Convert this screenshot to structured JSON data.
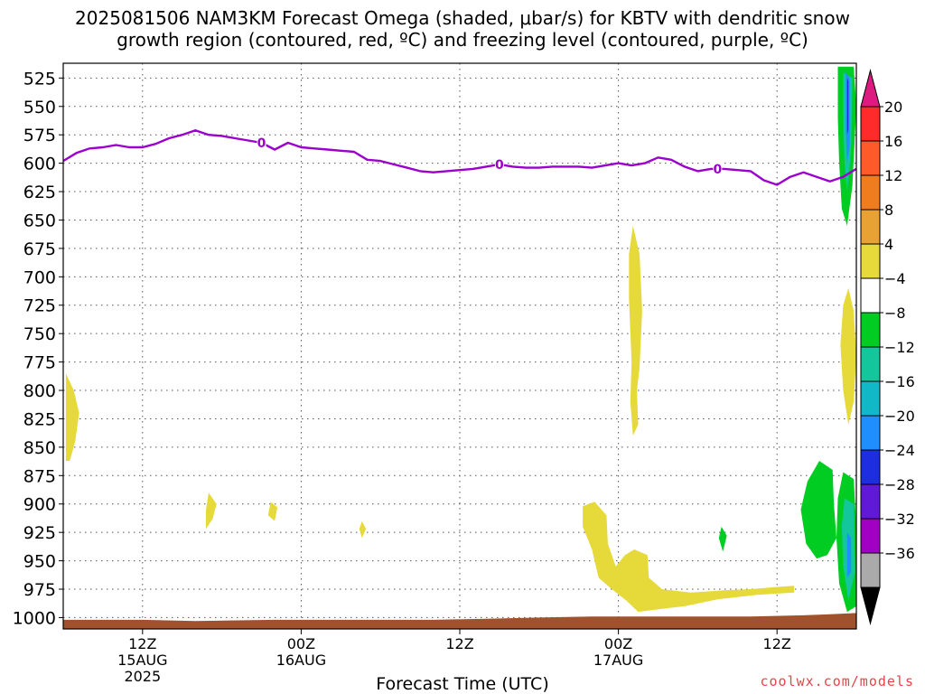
{
  "title": {
    "line1": "2025081506 NAM3KM Forecast Omega (shaded, μbar/s) for KBTV with dendritic snow",
    "line2": "growth region (contoured, red, ºC) and freezing level (contoured, purple, ºC)"
  },
  "credit": "coolwx.com/models",
  "chart_data": {
    "type": "heatmap",
    "title": "2025081506 NAM3KM Forecast Omega (shaded, μbar/s) for KBTV with dendritic snow growth region (contoured, red, ºC) and freezing level (contoured, purple, ºC)",
    "xlabel": "Forecast Time (UTC)",
    "ylabel": "",
    "y_axis": {
      "scale": "pressure (inverted)",
      "ylim": [
        1010,
        512
      ],
      "ticks": [
        525,
        550,
        575,
        600,
        625,
        650,
        675,
        700,
        725,
        750,
        775,
        800,
        825,
        850,
        875,
        900,
        925,
        950,
        975,
        1000
      ]
    },
    "x_axis": {
      "unit": "forecast hour from 2025-08-15 06Z",
      "xlim": [
        0,
        60
      ],
      "ticks": [
        {
          "hour": 6,
          "label": "12Z",
          "sub1": "15AUG",
          "sub2": "2025"
        },
        {
          "hour": 18,
          "label": "00Z",
          "sub1": "16AUG",
          "sub2": ""
        },
        {
          "hour": 30,
          "label": "12Z",
          "sub1": "",
          "sub2": ""
        },
        {
          "hour": 42,
          "label": "00Z",
          "sub1": "17AUG",
          "sub2": ""
        },
        {
          "hour": 54,
          "label": "12Z",
          "sub1": "",
          "sub2": ""
        }
      ]
    },
    "grid": true,
    "freezing_level": {
      "color": "#9b00cc",
      "label": "0",
      "label_hours": [
        15,
        33,
        49.5
      ],
      "points": [
        [
          0,
          598
        ],
        [
          1,
          591
        ],
        [
          2,
          587
        ],
        [
          3,
          586
        ],
        [
          4,
          584
        ],
        [
          5,
          586
        ],
        [
          6,
          586
        ],
        [
          7,
          583
        ],
        [
          8,
          578
        ],
        [
          9,
          575
        ],
        [
          10,
          571
        ],
        [
          11,
          575
        ],
        [
          12,
          576
        ],
        [
          13,
          578
        ],
        [
          14,
          580
        ],
        [
          15,
          582
        ],
        [
          16,
          588
        ],
        [
          17,
          582
        ],
        [
          18,
          586
        ],
        [
          19,
          587
        ],
        [
          20,
          588
        ],
        [
          21,
          589
        ],
        [
          22,
          590
        ],
        [
          23,
          597
        ],
        [
          24,
          598
        ],
        [
          25,
          601
        ],
        [
          26,
          604
        ],
        [
          27,
          607
        ],
        [
          28,
          608
        ],
        [
          29,
          607
        ],
        [
          30,
          606
        ],
        [
          31,
          605
        ],
        [
          32,
          603
        ],
        [
          33,
          601
        ],
        [
          34,
          603
        ],
        [
          35,
          604
        ],
        [
          36,
          604
        ],
        [
          37,
          603
        ],
        [
          38,
          603
        ],
        [
          39,
          603
        ],
        [
          40,
          604
        ],
        [
          41,
          602
        ],
        [
          42,
          600
        ],
        [
          43,
          602
        ],
        [
          44,
          600
        ],
        [
          45,
          595
        ],
        [
          46,
          597
        ],
        [
          47,
          603
        ],
        [
          48,
          607
        ],
        [
          49,
          605
        ],
        [
          50,
          605
        ],
        [
          51,
          606
        ],
        [
          52,
          607
        ],
        [
          53,
          615
        ],
        [
          54,
          619
        ],
        [
          55,
          612
        ],
        [
          56,
          608
        ],
        [
          57,
          612
        ],
        [
          58,
          616
        ],
        [
          59,
          612
        ],
        [
          60,
          605
        ]
      ]
    },
    "omega_regions": [
      {
        "color": "#e6d93a",
        "points": [
          [
            0.2,
            785
          ],
          [
            0.8,
            800
          ],
          [
            1.2,
            820
          ],
          [
            0.9,
            845
          ],
          [
            0.5,
            862
          ],
          [
            0.2,
            862
          ]
        ]
      },
      {
        "color": "#e6d93a",
        "points": [
          [
            11.0,
            890
          ],
          [
            11.6,
            900
          ],
          [
            11.3,
            913
          ],
          [
            10.8,
            922
          ],
          [
            10.8,
            905
          ]
        ]
      },
      {
        "color": "#e6d93a",
        "points": [
          [
            15.7,
            898
          ],
          [
            16.2,
            903
          ],
          [
            16.0,
            915
          ],
          [
            15.5,
            910
          ]
        ]
      },
      {
        "color": "#e6d93a",
        "points": [
          [
            22.6,
            915
          ],
          [
            22.9,
            922
          ],
          [
            22.6,
            930
          ],
          [
            22.4,
            922
          ]
        ]
      },
      {
        "color": "#e6d93a",
        "points": [
          [
            43.1,
            655
          ],
          [
            43.6,
            680
          ],
          [
            43.8,
            730
          ],
          [
            43.6,
            780
          ],
          [
            43.4,
            800
          ],
          [
            43.5,
            830
          ],
          [
            43.1,
            840
          ],
          [
            42.9,
            810
          ],
          [
            43.0,
            775
          ],
          [
            42.8,
            720
          ],
          [
            42.8,
            680
          ]
        ]
      },
      {
        "color": "#e6d93a",
        "points": [
          [
            39.3,
            902
          ],
          [
            40.2,
            898
          ],
          [
            41.1,
            910
          ],
          [
            41.2,
            935
          ],
          [
            41.8,
            955
          ],
          [
            42.5,
            945
          ],
          [
            43.2,
            940
          ],
          [
            44.2,
            945
          ],
          [
            44.3,
            965
          ],
          [
            45.3,
            975
          ],
          [
            47.5,
            978
          ],
          [
            50.0,
            976
          ],
          [
            52.0,
            975
          ],
          [
            54.0,
            973
          ],
          [
            55.3,
            972
          ],
          [
            55.3,
            978
          ],
          [
            52.5,
            980
          ],
          [
            49.5,
            984
          ],
          [
            47,
            990
          ],
          [
            45.5,
            992
          ],
          [
            43.5,
            995
          ],
          [
            42.6,
            985
          ],
          [
            41.5,
            975
          ],
          [
            40.5,
            965
          ],
          [
            40.0,
            940
          ],
          [
            39.3,
            920
          ]
        ]
      },
      {
        "color": "#e6d93a",
        "points": [
          [
            59.4,
            710
          ],
          [
            59.8,
            730
          ],
          [
            60.0,
            770
          ],
          [
            59.8,
            810
          ],
          [
            59.4,
            830
          ],
          [
            59.0,
            800
          ],
          [
            58.8,
            760
          ],
          [
            59.0,
            725
          ]
        ]
      },
      {
        "color": "#00cc22",
        "points": [
          [
            56.3,
            880
          ],
          [
            57.2,
            862
          ],
          [
            58.2,
            870
          ],
          [
            58.3,
            900
          ],
          [
            58.5,
            930
          ],
          [
            57.8,
            945
          ],
          [
            57.0,
            948
          ],
          [
            56.2,
            935
          ],
          [
            55.8,
            905
          ]
        ]
      },
      {
        "color": "#00cc22",
        "points": [
          [
            49.8,
            920
          ],
          [
            50.2,
            928
          ],
          [
            49.9,
            942
          ],
          [
            49.6,
            930
          ]
        ]
      },
      {
        "color": "#00cc22",
        "points": [
          [
            58.6,
            515
          ],
          [
            59.8,
            515
          ],
          [
            60.0,
            550
          ],
          [
            59.7,
            620
          ],
          [
            59.3,
            655
          ],
          [
            58.9,
            640
          ],
          [
            58.7,
            600
          ],
          [
            58.6,
            560
          ]
        ]
      },
      {
        "color": "#00cc22",
        "points": [
          [
            59.0,
            872
          ],
          [
            59.8,
            878
          ],
          [
            60.0,
            920
          ],
          [
            60.0,
            990
          ],
          [
            59.3,
            995
          ],
          [
            58.7,
            970
          ],
          [
            58.5,
            930
          ],
          [
            58.6,
            895
          ]
        ]
      },
      {
        "color": "#13c69c",
        "points": [
          [
            59.0,
            520
          ],
          [
            59.7,
            525
          ],
          [
            59.6,
            590
          ],
          [
            59.3,
            625
          ],
          [
            59.1,
            600
          ],
          [
            59.0,
            560
          ]
        ]
      },
      {
        "color": "#13c69c",
        "points": [
          [
            59.1,
            895
          ],
          [
            59.8,
            900
          ],
          [
            59.9,
            960
          ],
          [
            59.4,
            985
          ],
          [
            59.0,
            955
          ],
          [
            58.9,
            920
          ]
        ]
      },
      {
        "color": "#1f8fff",
        "points": [
          [
            59.2,
            520
          ],
          [
            59.5,
            525
          ],
          [
            59.5,
            585
          ],
          [
            59.3,
            600
          ],
          [
            59.2,
            570
          ]
        ]
      },
      {
        "color": "#1f8fff",
        "points": [
          [
            59.3,
            925
          ],
          [
            59.6,
            930
          ],
          [
            59.6,
            960
          ],
          [
            59.3,
            965
          ]
        ]
      },
      {
        "color": "#1d2ee0",
        "points": [
          [
            59.3,
            525
          ],
          [
            59.4,
            528
          ],
          [
            59.4,
            570
          ],
          [
            59.3,
            575
          ]
        ]
      }
    ],
    "terrain": {
      "color": "#a0522d",
      "top_points": [
        [
          0,
          1002
        ],
        [
          6,
          1002
        ],
        [
          10,
          1003
        ],
        [
          16,
          1002
        ],
        [
          20,
          1002
        ],
        [
          25,
          1002
        ],
        [
          28,
          1002
        ],
        [
          32,
          1001
        ],
        [
          36,
          1000
        ],
        [
          40,
          999
        ],
        [
          44,
          999
        ],
        [
          48,
          999
        ],
        [
          52,
          999
        ],
        [
          56,
          998
        ],
        [
          58,
          997
        ],
        [
          60,
          996
        ]
      ]
    },
    "colorbar": {
      "labels": [
        "20",
        "16",
        "12",
        "8",
        "4",
        "−4",
        "−8",
        "−12",
        "−16",
        "−20",
        "−24",
        "−28",
        "−32",
        "−36"
      ],
      "colors": [
        "#ff2a2a",
        "#ff5a2a",
        "#f07c20",
        "#e8a234",
        "#e6d93a",
        "#ffffff",
        "#00cc22",
        "#13c69c",
        "#11b8c8",
        "#1f8fff",
        "#1d2ee0",
        "#6019d6",
        "#a100c4",
        "#aaaaaa"
      ],
      "top_color": "#dd1a80",
      "bottom_color": "#000000"
    }
  }
}
